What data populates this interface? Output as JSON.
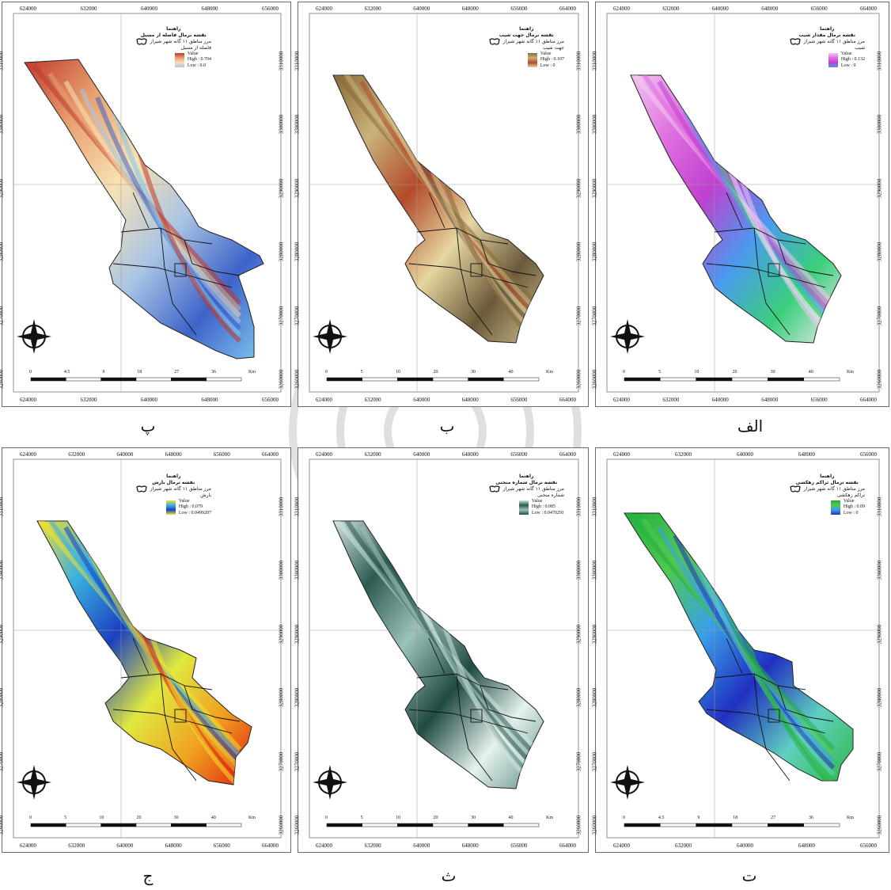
{
  "panels": [
    {
      "id": "p",
      "caption": "پ",
      "legend": {
        "title": "راهنما",
        "subtitle": "نقشه نرمال فاصله از مسیل",
        "boundary": "مرز مناطق ۱۱ گانه شهر شیراز",
        "layer": "فاصله از مسیل",
        "value_label": "Value",
        "high": "High : 0.704",
        "low": "Low : 0.0"
      },
      "top_ticks": [
        "624000",
        "632000",
        "640000",
        "648000",
        "656000"
      ],
      "bottom_ticks": [
        "624000",
        "632000",
        "640000",
        "648000",
        "656000"
      ],
      "left_ticks": [
        "3310000",
        "3300000",
        "3290000",
        "3280000",
        "3270000",
        "3260000"
      ],
      "right_ticks": [
        "3310000",
        "3300000",
        "3290000",
        "3280000",
        "3270000",
        "3260000"
      ],
      "scale": [
        "0",
        "4.5",
        "9",
        "18",
        "27",
        "36"
      ],
      "scale_unit": "Km",
      "colors": [
        "#c0392b",
        "#e8a070",
        "#f7e2b4",
        "#a9c4e4",
        "#3d63c9",
        "#7fc6ef"
      ]
    },
    {
      "id": "b",
      "caption": "ب",
      "legend": {
        "title": "راهنما",
        "subtitle": "نقشه نرمال جهت شیب",
        "boundary": "مرز مناطق ۱۱ گانه شهر شیراز",
        "layer": "جهت شیب",
        "value_label": "Value",
        "high": "High : 0.107",
        "low": "Low : 0"
      },
      "top_ticks": [
        "624000",
        "632000",
        "640000",
        "648000",
        "656000",
        "664000"
      ],
      "bottom_ticks": [
        "624000",
        "632000",
        "640000",
        "648000",
        "656000",
        "664000"
      ],
      "left_ticks": [
        "3310000",
        "3300000",
        "3290000",
        "3280000",
        "3270000",
        "3260000"
      ],
      "right_ticks": [
        "3310000",
        "3300000",
        "3290000",
        "3280000",
        "3270000",
        "3260000"
      ],
      "scale": [
        "0",
        "5",
        "10",
        "20",
        "30",
        "40"
      ],
      "scale_unit": "Km",
      "colors": [
        "#8a6a3a",
        "#c8b27a",
        "#b34a2a",
        "#e6d6a0",
        "#6b5a3a",
        "#d0c090"
      ]
    },
    {
      "id": "alef",
      "caption": "الف",
      "legend": {
        "title": "راهنما",
        "subtitle": "نقشه نرمال مقدار شیب",
        "boundary": "مرز مناطق ۱۱ گانه شهر شیراز",
        "layer": "شیب",
        "value_label": "Value",
        "high": "High : 0.132",
        "low": "Low : 0"
      },
      "top_ticks": [
        "624000",
        "632000",
        "640000",
        "648000",
        "656000",
        "664000"
      ],
      "bottom_ticks": [
        "624000",
        "632000",
        "640000",
        "648000",
        "656000",
        "664000"
      ],
      "left_ticks": [
        "3310000",
        "3300000",
        "3290000",
        "3280000",
        "3270000",
        "3260000"
      ],
      "right_ticks": [
        "3310000",
        "3300000",
        "3290000",
        "3280000",
        "3270000",
        "3260000"
      ],
      "scale": [
        "0",
        "5",
        "10",
        "20",
        "30",
        "40"
      ],
      "scale_unit": "Km",
      "colors": [
        "#f2c6f0",
        "#e070e0",
        "#c040d0",
        "#4a9aef",
        "#3ad07a",
        "#f8e8f8"
      ]
    },
    {
      "id": "j",
      "caption": "ج",
      "legend": {
        "title": "راهنما",
        "subtitle": "نقشه نرمال بارش",
        "boundary": "مرز مناطق ۱۱ گانه شهر شیراز",
        "layer": "بارش",
        "value_label": "Value",
        "high": "High : 0.079",
        "low": "Low : 0.0499207"
      },
      "top_ticks": [
        "624000",
        "632000",
        "640000",
        "648000",
        "656000",
        "664000"
      ],
      "bottom_ticks": [
        "624000",
        "632000",
        "640000",
        "648000",
        "656000",
        "664000"
      ],
      "left_ticks": [
        "3310000",
        "3300000",
        "3290000",
        "3280000",
        "3270000",
        "3260000"
      ],
      "right_ticks": [
        "3310000",
        "3300000",
        "3290000",
        "3280000",
        "3270000",
        "3260000"
      ],
      "scale": [
        "0",
        "5",
        "10",
        "20",
        "30",
        "40"
      ],
      "scale_unit": "Km",
      "colors": [
        "#f2e030",
        "#3ab0e0",
        "#1a40c0",
        "#e0e840",
        "#f0a020",
        "#e02010"
      ]
    },
    {
      "id": "th",
      "caption": "ث",
      "legend": {
        "title": "راهنما",
        "subtitle": "نقشه نرمال شماره منحنی",
        "boundary": "مرز مناطق ۱۱ گانه شهر شیراز",
        "layer": "شماره منحنی",
        "value_label": "Value",
        "high": "High : 0.085",
        "low": "Low : 0.0470291"
      },
      "top_ticks": [
        "624000",
        "632000",
        "640000",
        "648000",
        "656000",
        "664000"
      ],
      "bottom_ticks": [
        "624000",
        "632000",
        "640000",
        "648000",
        "656000",
        "664000"
      ],
      "left_ticks": [
        "3310000",
        "3300000",
        "3290000",
        "3280000",
        "3270000",
        "3260000"
      ],
      "right_ticks": [
        "3310000",
        "3300000",
        "3290000",
        "3280000",
        "3270000",
        "3260000"
      ],
      "scale": [
        "0",
        "5",
        "10",
        "20",
        "30",
        "40"
      ],
      "scale_unit": "Km",
      "colors": [
        "#cfe4e0",
        "#2d5a52",
        "#9cc2bc",
        "#1f4a42",
        "#e6f2ef",
        "#5b8a82"
      ]
    },
    {
      "id": "t",
      "caption": "ت",
      "legend": {
        "title": "راهنما",
        "subtitle": "نقشه نرمال تراکم زهکشی",
        "boundary": "مرز مناطق ۱۱ گانه شهر شیراز",
        "layer": "تراکم زهکشی",
        "value_label": "Value",
        "high": "High : 0.09",
        "low": "Low : 0"
      },
      "top_ticks": [
        "624000",
        "632000",
        "640000",
        "648000",
        "656000"
      ],
      "bottom_ticks": [
        "624000",
        "632000",
        "640000",
        "648000",
        "656000"
      ],
      "left_ticks": [
        "3310000",
        "3300000",
        "3290000",
        "3280000",
        "3270000",
        "3260000"
      ],
      "right_ticks": [
        "3310000",
        "3300000",
        "3290000",
        "3280000",
        "3270000",
        "3260000"
      ],
      "scale": [
        "0",
        "4.5",
        "9",
        "18",
        "27",
        "36"
      ],
      "scale_unit": "Km",
      "colors": [
        "#22b040",
        "#50c850",
        "#3aa0e8",
        "#2030c0",
        "#60d0c0",
        "#30b848"
      ]
    }
  ]
}
